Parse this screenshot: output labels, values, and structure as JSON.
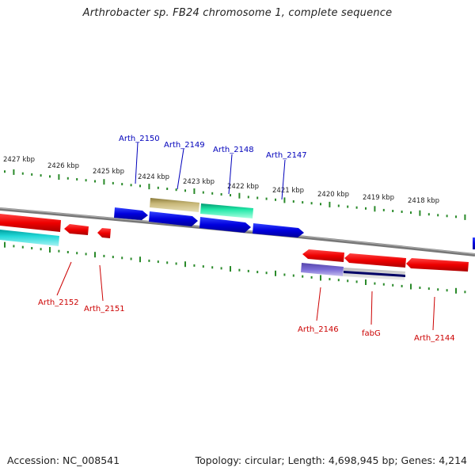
{
  "title": "Arthrobacter sp. FB24 chromosome 1, complete sequence",
  "footer": {
    "accession": "Accession: NC_008541",
    "stats": "Topology: circular; Length: 4,698,945 bp; Genes: 4,214"
  },
  "scale": {
    "ticks": [
      "2427 kbp",
      "2426 kbp",
      "2425 kbp",
      "2424 kbp",
      "2423 kbp",
      "2422 kbp",
      "2421 kbp",
      "2420 kbp",
      "2419 kbp",
      "2418 kbp"
    ]
  },
  "genes_top": [
    {
      "name": "Arth_2150",
      "color": "#0000bb"
    },
    {
      "name": "Arth_2149",
      "color": "#0000bb"
    },
    {
      "name": "Arth_2148",
      "color": "#0000bb"
    },
    {
      "name": "Arth_2147",
      "color": "#0000bb"
    }
  ],
  "genes_bottom": [
    {
      "name": "Arth_2152",
      "color": "#cc0000"
    },
    {
      "name": "Arth_2151",
      "color": "#cc0000"
    },
    {
      "name": "Arth_2146",
      "color": "#cc0000"
    },
    {
      "name": "fabG",
      "color": "#cc0000"
    },
    {
      "name": "Arth_2144",
      "color": "#cc0000"
    }
  ],
  "colors": {
    "forward_cds": "#0000ee",
    "reverse_cds": "#ee0000",
    "backbone": "#888888",
    "tick": "#2a8a2a",
    "gene_tan": "#b5a665",
    "gene_teal": "#22e0a0",
    "gene_cyan": "#22cccc",
    "gene_purple": "#7766cc",
    "gene_navy": "#000066"
  }
}
